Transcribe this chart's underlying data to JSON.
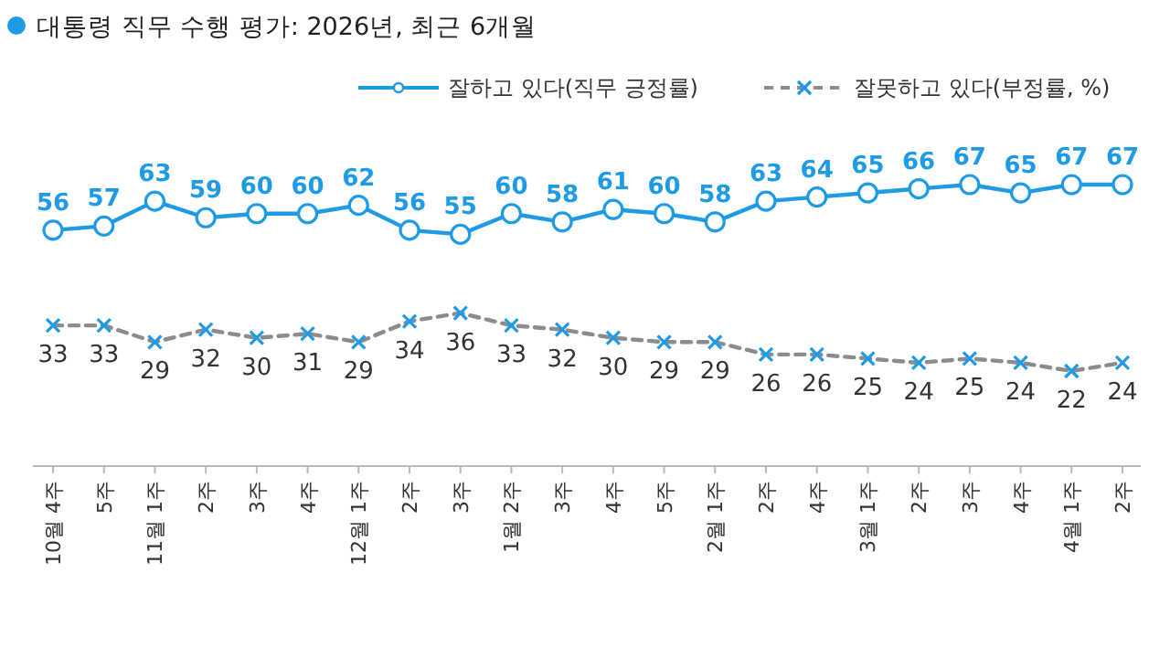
{
  "chart_data": {
    "type": "line",
    "title": "대통령 직무 수행 평가: 2026년, 최근 6개월",
    "categories": [
      "10월 4주",
      "5주",
      "11월 1주",
      "2주",
      "3주",
      "4주",
      "12월 1주",
      "2주",
      "3주",
      "1월 2주",
      "3주",
      "4주",
      "5주",
      "2월 1주",
      "2주",
      "4주",
      "3월 1주",
      "2주",
      "3주",
      "4주",
      "4월 1주",
      "2주"
    ],
    "series": [
      {
        "name": "잘하고 있다(직무 긍정률)",
        "color": "#1e9be4",
        "marker": "circle",
        "line_style": "solid",
        "values": [
          56,
          57,
          63,
          59,
          60,
          60,
          62,
          56,
          55,
          60,
          58,
          61,
          60,
          58,
          63,
          64,
          65,
          66,
          67,
          65,
          67,
          67
        ]
      },
      {
        "name": "잘못하고 있다(부정률, %)",
        "color": "#8c8c8c",
        "colors": [
          "#1e9be4",
          "#1e9be4",
          "#1e9be4",
          "#1e9be4",
          "#1e9be4",
          "#1e9be4",
          "#1e9be4",
          "#1e9be4",
          "#1e9be4",
          "#1e9be4",
          "#1e9be4",
          "#1e9be4",
          "#1e9be4",
          "#1e9be4",
          "#1e9be4",
          "#1e9be4",
          "#1e9be4",
          "#1e9be4",
          "#1e9be4",
          "#1e9be4",
          "#1e9be4",
          "#1e9be4"
        ],
        "marker": "cross",
        "line_style": "dashed",
        "values": [
          33,
          33,
          29,
          32,
          30,
          31,
          29,
          34,
          36,
          33,
          32,
          30,
          29,
          29,
          26,
          26,
          25,
          24,
          25,
          24,
          22,
          24
        ]
      }
    ],
    "data_labels": true,
    "legend": "top right"
  }
}
